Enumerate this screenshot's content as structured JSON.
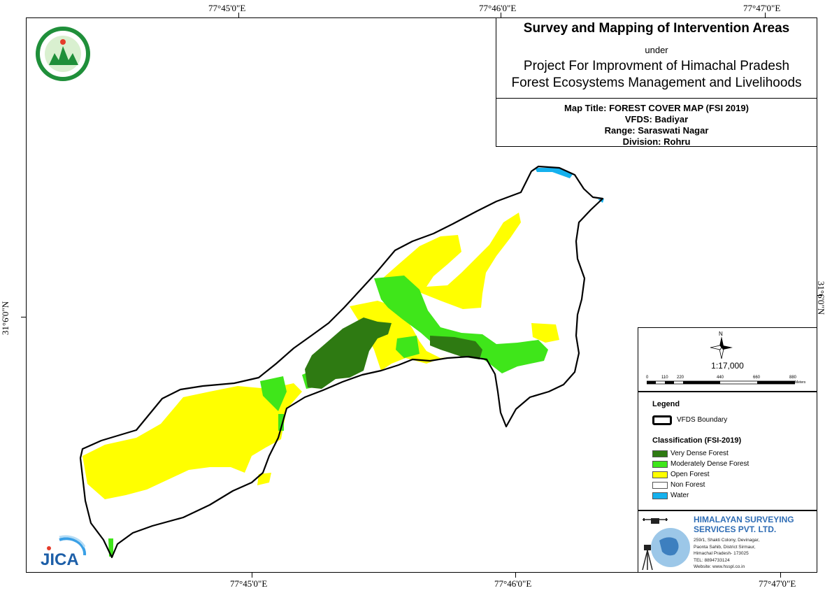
{
  "coords": {
    "top": [
      "77°45'0\"E",
      "77°46'0\"E",
      "77°47'0\"E"
    ],
    "bottom": [
      "77°45'0\"E",
      "77°46'0\"E",
      "77°47'0\"E"
    ],
    "left": "31°6'0\"N",
    "right": "31°6'0\"N"
  },
  "title_box": {
    "title": "Survey and Mapping of Intervention Areas",
    "under": "under",
    "project_line1": "Project For Improvment of Himachal Pradesh",
    "project_line2": "Forest Ecosystems Management and Livelihoods",
    "map_title": "Map Title: FOREST COVER MAP (FSI 2019)",
    "vfds": "VFDS: Badiyar",
    "range": "Range: Saraswati Nagar",
    "division": "Division: Rohru"
  },
  "scale": {
    "north": "N",
    "ratio": "1:17,000",
    "ticks": [
      "0",
      "110",
      "220",
      "440",
      "660",
      "880"
    ],
    "unit": "Meters"
  },
  "legend": {
    "heading": "Legend",
    "boundary_label": "VFDS Boundary",
    "classification_heading": "Classification (FSI-2019)",
    "items": [
      {
        "label": "Very Dense Forest",
        "color": "#2e7a12"
      },
      {
        "label": "Moderately Dense Forest",
        "color": "#3fe61a"
      },
      {
        "label": "Open Forest",
        "color": "#ffff00"
      },
      {
        "label": "Non Forest",
        "color": "#ffffff"
      },
      {
        "label": "Water",
        "color": "#15b1ee"
      }
    ]
  },
  "company": {
    "name_line1": "HIMALAYAN SURVEYING",
    "name_line2": "SERVICES PVT. LTD.",
    "address": [
      "259/1, Shakti Colony, Devinagar,",
      "Paonta Sahib, District Sirmaur,",
      "Himachal Pradesh- 173025",
      "TEL: 8894733124",
      "Website: www.hsspl.co.in"
    ],
    "brand_color": "#2f6db5"
  },
  "logos": {
    "top_left": "hp-forest-department-seal",
    "bottom_left": "JICA"
  }
}
